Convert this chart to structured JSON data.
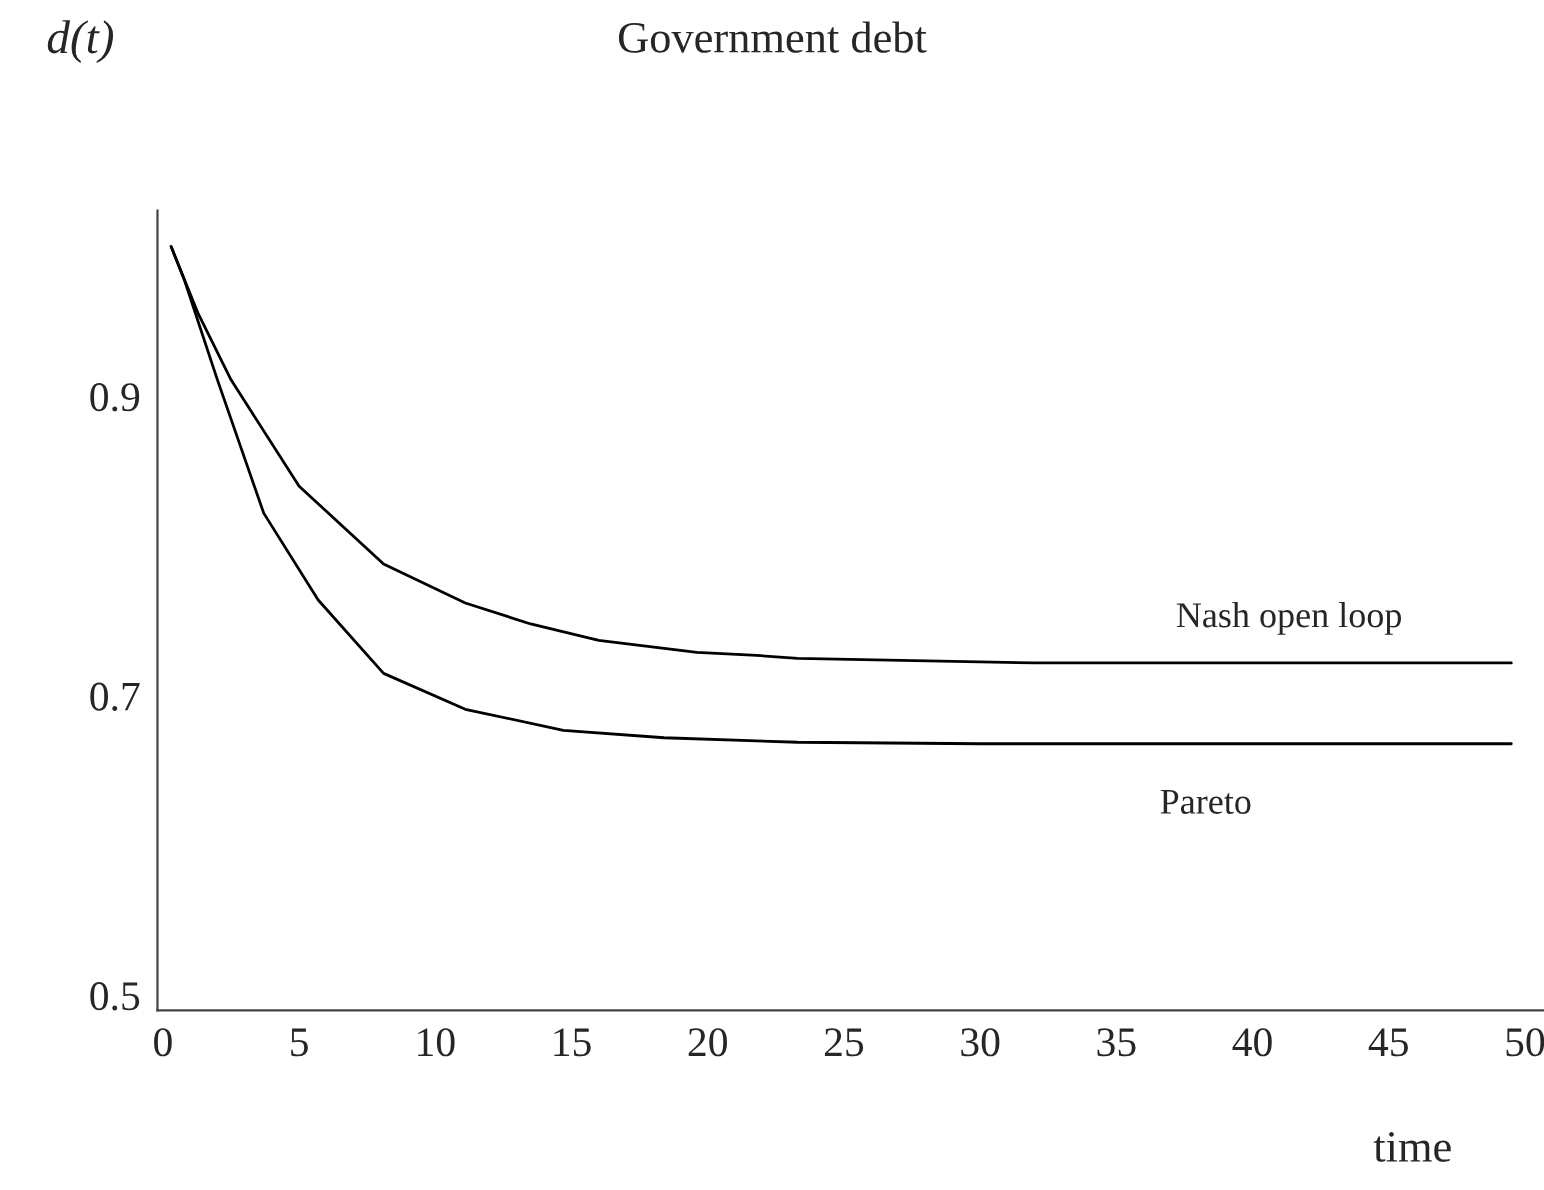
{
  "chart_data": {
    "type": "line",
    "title": "Government debt",
    "ylabel": "d(t)",
    "xlabel": "time",
    "xlim": [
      -0.2,
      50.7
    ],
    "ylim": [
      0.49,
      1.024
    ],
    "xticks": [
      0,
      5,
      10,
      15,
      20,
      25,
      30,
      35,
      40,
      45,
      50
    ],
    "yticks": [
      0.5,
      0.7,
      0.9
    ],
    "grid": false,
    "legend": false,
    "marker": "none",
    "line_style": "solid",
    "series": [
      {
        "name": "Nash open loop",
        "color": "#000000",
        "x": [
          0.3,
          1.3,
          2.5,
          5.0,
          8.1,
          11.1,
          13.5,
          16.0,
          19.6,
          21.8,
          23.3,
          32,
          49.5
        ],
        "values": [
          1.0,
          0.955,
          0.911,
          0.84,
          0.788,
          0.762,
          0.748,
          0.737,
          0.729,
          0.727,
          0.725,
          0.722,
          0.722
        ]
      },
      {
        "name": "Pareto",
        "color": "#000000",
        "x": [
          0.3,
          0.8,
          2.0,
          3.7,
          5.7,
          8.1,
          11.1,
          14.7,
          18.4,
          23.3,
          30,
          49.5
        ],
        "values": [
          1.0,
          0.977,
          0.911,
          0.822,
          0.764,
          0.715,
          0.691,
          0.677,
          0.672,
          0.669,
          0.668,
          0.668
        ]
      }
    ]
  }
}
